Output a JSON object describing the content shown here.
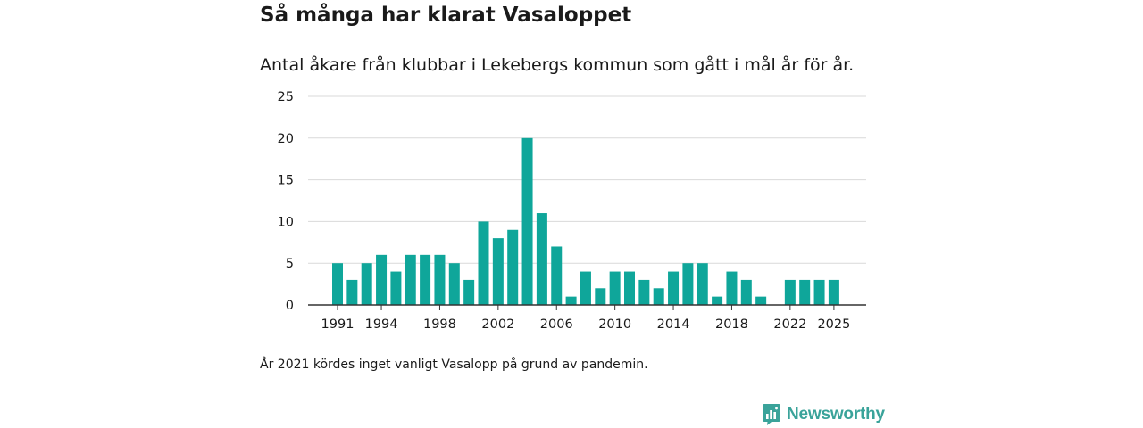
{
  "chart_data": {
    "type": "bar",
    "title": "Så många har klarat Vasaloppet",
    "subtitle": "Antal åkare från klubbar i Lekebergs kommun som gått i mål år för år.",
    "xlabel": "",
    "ylabel": "",
    "ylim": [
      0,
      25
    ],
    "yticks": [
      "0",
      "5",
      "10",
      "15",
      "20",
      "25"
    ],
    "xticks": [
      "1991",
      "1994",
      "1998",
      "2002",
      "2006",
      "2010",
      "2014",
      "2018",
      "2022",
      "2025"
    ],
    "grid": true,
    "bar_color": "#0fa69a",
    "categories": [
      "1991",
      "1992",
      "1993",
      "1994",
      "1995",
      "1996",
      "1997",
      "1998",
      "1999",
      "2000",
      "2001",
      "2002",
      "2003",
      "2004",
      "2005",
      "2006",
      "2007",
      "2008",
      "2009",
      "2010",
      "2011",
      "2012",
      "2013",
      "2014",
      "2015",
      "2016",
      "2017",
      "2018",
      "2019",
      "2020",
      "2021",
      "2022",
      "2023",
      "2024",
      "2025"
    ],
    "values": [
      5,
      3,
      5,
      6,
      4,
      6,
      6,
      6,
      5,
      3,
      10,
      8,
      9,
      20,
      11,
      7,
      1,
      4,
      2,
      4,
      4,
      3,
      2,
      4,
      5,
      5,
      1,
      4,
      3,
      1,
      0,
      3,
      3,
      3,
      3
    ]
  },
  "footnote": "År 2021 kördes inget vanligt Vasalopp på grund av pandemin.",
  "brand": {
    "name": "Newsworthy",
    "icon": "newsworthy-logo-icon",
    "color": "#3aa39a"
  }
}
